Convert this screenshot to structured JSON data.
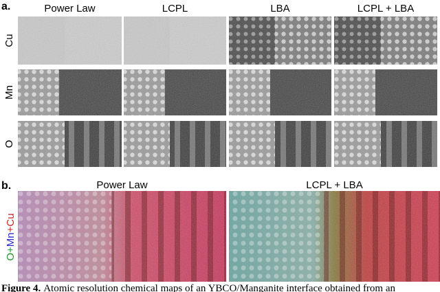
{
  "panel_a": {
    "label": "a.",
    "columns": [
      "Power Law",
      "LCPL",
      "LBA",
      "LCPL + LBA"
    ],
    "rows": [
      "Cu",
      "Mn",
      "O"
    ]
  },
  "panel_b": {
    "label": "b.",
    "columns": [
      "Power Law",
      "LCPL + LBA"
    ],
    "row_label": [
      "O",
      "+",
      "Mn",
      "+",
      "Cu"
    ]
  },
  "caption": {
    "label": "Figure 4.",
    "text": "Atomic resolution chemical maps of an YBCO/Manganite interface obtained from an"
  }
}
